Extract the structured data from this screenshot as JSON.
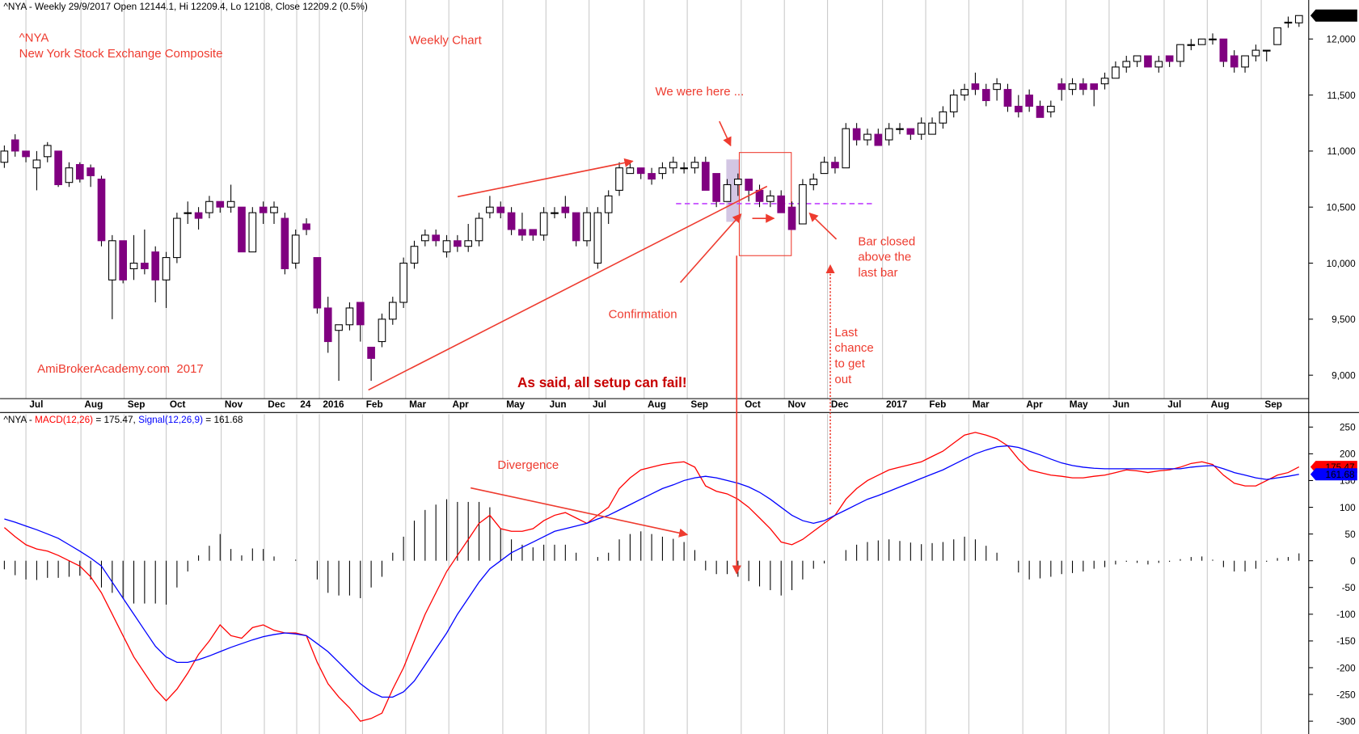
{
  "chart_data": [
    {
      "type": "candlestick",
      "title": "^NYA - Weekly 29/9/2017 Open 12144.1, Hi 12209.4, Lo 12108, Close 12209.2 (0.5%)",
      "last_value_label": "12,209.2",
      "up_color": "#ffffff",
      "down_color": "#800080",
      "grid": true,
      "annotations": {
        "symbol": "^NYA",
        "name": "New York Stock Exchange Composite",
        "period": "Weekly Chart",
        "here": "We were here ...",
        "bar_closed": [
          "Bar closed",
          "above the",
          "last bar"
        ],
        "confirmation": "Confirmation",
        "last_chance": [
          "Last",
          "chance",
          "to get",
          "out"
        ],
        "site": "AmiBrokerAcademy.com  2017",
        "warning": "As said, all setup can fail!"
      },
      "xlim": [
        -0.4,
        120.9
      ],
      "xticks": [
        {
          "value": 2,
          "label": "Jul"
        },
        {
          "value": 7.1,
          "label": "Aug"
        },
        {
          "value": 11.1,
          "label": "Sep"
        },
        {
          "value": 15,
          "label": "Oct"
        },
        {
          "value": 20.1,
          "label": "Nov"
        },
        {
          "value": 24.1,
          "label": "Dec"
        },
        {
          "value": 27.1,
          "label": "24"
        },
        {
          "value": 29.2,
          "label": "2016"
        },
        {
          "value": 33.2,
          "label": "Feb"
        },
        {
          "value": 37.2,
          "label": "Mar"
        },
        {
          "value": 41.2,
          "label": "Apr"
        },
        {
          "value": 46.2,
          "label": "May"
        },
        {
          "value": 50.2,
          "label": "Jun"
        },
        {
          "value": 54.2,
          "label": "Jul"
        },
        {
          "value": 59.3,
          "label": "Aug"
        },
        {
          "value": 63.3,
          "label": "Sep"
        },
        {
          "value": 68.3,
          "label": "Oct"
        },
        {
          "value": 72.3,
          "label": "Nov"
        },
        {
          "value": 76.3,
          "label": "Dec"
        },
        {
          "value": 81.4,
          "label": "2017"
        },
        {
          "value": 85.4,
          "label": "Feb"
        },
        {
          "value": 89.4,
          "label": "Mar"
        },
        {
          "value": 94.4,
          "label": "Apr"
        },
        {
          "value": 98.4,
          "label": "May"
        },
        {
          "value": 102.4,
          "label": "Jun"
        },
        {
          "value": 107.5,
          "label": "Jul"
        },
        {
          "value": 111.5,
          "label": "Aug"
        },
        {
          "value": 116.5,
          "label": "Sep"
        }
      ],
      "ylim": [
        8791,
        12348
      ],
      "yticks": [
        {
          "value": 9000,
          "label": "9,000"
        },
        {
          "value": 9500,
          "label": "9,500"
        },
        {
          "value": 10000,
          "label": "10,000"
        },
        {
          "value": 10500,
          "label": "10,500"
        },
        {
          "value": 11000,
          "label": "11,000"
        },
        {
          "value": 11500,
          "label": "11,500"
        },
        {
          "value": 12000,
          "label": "12,000"
        }
      ],
      "open": [
        10900,
        11100,
        11000,
        10850,
        10950,
        11000,
        10720,
        10880,
        10850,
        10750,
        9850,
        10200,
        9950,
        10000,
        10100,
        9850,
        10050,
        10450,
        10450,
        10450,
        10550,
        10500,
        10500,
        10100,
        10500,
        10450,
        10400,
        10000,
        10350,
        10050,
        9600,
        9400,
        9450,
        9650,
        9250,
        9300,
        9500,
        9650,
        10000,
        10200,
        10250,
        10100,
        10200,
        10150,
        10200,
        10450,
        10500,
        10450,
        10300,
        10300,
        10250,
        10450,
        10500,
        10450,
        10200,
        10000,
        10450,
        10650,
        10800,
        10850,
        10800,
        10800,
        10850,
        10850,
        10850,
        10900,
        10800,
        10550,
        10700,
        10750,
        10650,
        10550,
        10600,
        10500,
        10350,
        10700,
        10800,
        10900,
        10850,
        11200,
        11100,
        11150,
        11100,
        11200,
        11200,
        11150,
        11150,
        11250,
        11350,
        11500,
        11600,
        11550,
        11550,
        11550,
        11400,
        11500,
        11400,
        11350,
        11600,
        11550,
        11600,
        11600,
        11600,
        11650,
        11750,
        11800,
        11850,
        11750,
        11850,
        11800,
        11950,
        11950,
        12000,
        12000,
        11850,
        11750,
        11850,
        11900,
        11950,
        12150,
        12144.1
      ],
      "high": [
        11050,
        11150,
        11000,
        11000,
        11080,
        11000,
        10900,
        10900,
        10880,
        10780,
        10250,
        10200,
        10250,
        10300,
        10150,
        10100,
        10450,
        10550,
        10500,
        10600,
        10550,
        10700,
        10500,
        10500,
        10550,
        10550,
        10450,
        10300,
        10400,
        10050,
        9700,
        9450,
        9650,
        9650,
        9250,
        9550,
        9700,
        10050,
        10200,
        10300,
        10300,
        10250,
        10250,
        10350,
        10450,
        10600,
        10550,
        10500,
        10450,
        10300,
        10500,
        10500,
        10600,
        10450,
        10500,
        10500,
        10650,
        10900,
        10900,
        10850,
        10850,
        10900,
        10950,
        10900,
        10950,
        10950,
        10800,
        10750,
        10800,
        10750,
        10700,
        10650,
        10650,
        10550,
        10750,
        10800,
        10950,
        10950,
        11250,
        11250,
        11200,
        11200,
        11250,
        11250,
        11200,
        11300,
        11300,
        11400,
        11550,
        11600,
        11700,
        11600,
        11650,
        11600,
        11500,
        11550,
        11450,
        11450,
        11650,
        11650,
        11650,
        11600,
        11700,
        11800,
        11850,
        11850,
        11850,
        11850,
        11850,
        11950,
        12000,
        12000,
        12050,
        12000,
        11900,
        11850,
        11950,
        11900,
        12100,
        12200,
        12209.4
      ],
      "low": [
        10850,
        10950,
        10900,
        10650,
        10900,
        10680,
        10680,
        10720,
        10680,
        10150,
        9500,
        9820,
        9850,
        9900,
        9650,
        9600,
        10000,
        10350,
        10300,
        10400,
        10450,
        10450,
        10100,
        10100,
        10350,
        10350,
        9900,
        9950,
        10250,
        9550,
        9200,
        8950,
        9400,
        9300,
        8950,
        9250,
        9450,
        9600,
        9950,
        10150,
        10150,
        10050,
        10100,
        10100,
        10150,
        10400,
        10400,
        10250,
        10200,
        10200,
        10200,
        10400,
        10400,
        10150,
        10150,
        9950,
        10350,
        10600,
        10800,
        10750,
        10700,
        10750,
        10800,
        10800,
        10800,
        10650,
        10500,
        10550,
        10600,
        10550,
        10500,
        10500,
        10450,
        10300,
        10350,
        10650,
        10800,
        10800,
        10850,
        11050,
        11050,
        11050,
        11050,
        11150,
        11100,
        11100,
        11150,
        11200,
        11300,
        11450,
        11500,
        11400,
        11450,
        11350,
        11300,
        11350,
        11300,
        11300,
        11450,
        11500,
        11500,
        11400,
        11550,
        11650,
        11700,
        11750,
        11750,
        11700,
        11750,
        11750,
        11900,
        11950,
        11950,
        11750,
        11700,
        11700,
        11800,
        11800,
        11950,
        12100,
        12108
      ],
      "close": [
        11000,
        11000,
        10950,
        10920,
        11050,
        10700,
        10850,
        10750,
        10780,
        10200,
        10200,
        9850,
        10000,
        9950,
        9850,
        10050,
        10400,
        10450,
        10400,
        10550,
        10500,
        10550,
        10100,
        10450,
        10450,
        10500,
        9950,
        10250,
        10300,
        9600,
        9300,
        9450,
        9600,
        9450,
        9150,
        9500,
        9650,
        10000,
        10150,
        10250,
        10200,
        10200,
        10150,
        10200,
        10400,
        10500,
        10450,
        10300,
        10250,
        10250,
        10450,
        10450,
        10450,
        10200,
        10450,
        10450,
        10600,
        10850,
        10850,
        10800,
        10750,
        10850,
        10900,
        10850,
        10900,
        10650,
        10550,
        10700,
        10750,
        10650,
        10550,
        10600,
        10450,
        10300,
        10700,
        10750,
        10900,
        10850,
        11200,
        11100,
        11150,
        11050,
        11200,
        11200,
        11150,
        11250,
        11250,
        11350,
        11500,
        11550,
        11550,
        11450,
        11600,
        11400,
        11350,
        11400,
        11300,
        11400,
        11550,
        11600,
        11550,
        11550,
        11650,
        11750,
        11800,
        11850,
        11750,
        11800,
        11800,
        11950,
        11950,
        12000,
        12000,
        11800,
        11750,
        11850,
        11900,
        11900,
        12100,
        12150,
        12209.2
      ]
    },
    {
      "type": "macd",
      "header_prefix": "^NYA -",
      "annotations": {
        "divergence": "Divergence"
      },
      "ylim": [
        -324,
        274
      ],
      "yticks": [
        250,
        200,
        150,
        100,
        50,
        0,
        -50,
        -100,
        -150,
        -200,
        -250,
        -300
      ],
      "series": [
        {
          "name": "MACD(12,26)",
          "header_value": "= 175.47,",
          "last_value_label": "175.47",
          "color": "#ff0000",
          "values": [
            62,
            45,
            30,
            22,
            18,
            10,
            0,
            -10,
            -30,
            -60,
            -100,
            -140,
            -180,
            -210,
            -240,
            -262,
            -240,
            -210,
            -175,
            -150,
            -120,
            -140,
            -145,
            -125,
            -120,
            -130,
            -135,
            -135,
            -140,
            -190,
            -230,
            -255,
            -275,
            -300,
            -295,
            -285,
            -240,
            -200,
            -150,
            -100,
            -60,
            -20,
            10,
            40,
            70,
            85,
            60,
            55,
            55,
            60,
            75,
            85,
            90,
            80,
            70,
            85,
            100,
            135,
            155,
            170,
            175,
            180,
            183,
            185,
            175,
            140,
            130,
            125,
            115,
            100,
            80,
            60,
            35,
            30,
            40,
            55,
            70,
            85,
            115,
            135,
            150,
            160,
            170,
            175,
            180,
            185,
            195,
            205,
            220,
            235,
            240,
            235,
            228,
            215,
            190,
            170,
            165,
            160,
            158,
            155,
            155,
            158,
            160,
            165,
            170,
            168,
            165,
            168,
            170,
            175,
            182,
            185,
            180,
            160,
            145,
            140,
            140,
            150,
            160,
            165,
            175.47
          ]
        },
        {
          "name": "Signal(12,26,9)",
          "header_value": "= 161.68",
          "last_value_label": "161.68",
          "color": "#0000ff",
          "values": [
            78,
            72,
            65,
            58,
            50,
            42,
            30,
            18,
            5,
            -10,
            -40,
            -70,
            -100,
            -130,
            -160,
            -180,
            -190,
            -190,
            -185,
            -178,
            -170,
            -162,
            -155,
            -148,
            -142,
            -138,
            -135,
            -137,
            -140,
            -155,
            -170,
            -190,
            -210,
            -230,
            -245,
            -255,
            -255,
            -245,
            -225,
            -195,
            -165,
            -135,
            -100,
            -70,
            -40,
            -15,
            0,
            15,
            25,
            35,
            45,
            55,
            60,
            65,
            70,
            78,
            85,
            95,
            105,
            115,
            125,
            135,
            142,
            150,
            155,
            158,
            155,
            150,
            145,
            138,
            128,
            115,
            100,
            85,
            75,
            70,
            75,
            85,
            95,
            105,
            115,
            122,
            130,
            138,
            146,
            154,
            162,
            170,
            180,
            190,
            200,
            207,
            213,
            215,
            212,
            205,
            198,
            190,
            183,
            178,
            175,
            173,
            172,
            172,
            172,
            172,
            172,
            172,
            172,
            172,
            175,
            177,
            178,
            172,
            165,
            160,
            155,
            152,
            155,
            158,
            161.68
          ]
        }
      ],
      "histogram_color": "#000000",
      "histogram": [
        -16,
        -27,
        -35,
        -36,
        -32,
        -32,
        -30,
        -28,
        -35,
        -50,
        -60,
        -70,
        -80,
        -80,
        -80,
        -82,
        -50,
        -20,
        10,
        28,
        50,
        22,
        10,
        23,
        22,
        8,
        0,
        2,
        0,
        -35,
        -60,
        -65,
        -65,
        -70,
        -50,
        -30,
        15,
        45,
        75,
        95,
        105,
        115,
        110,
        110,
        110,
        100,
        60,
        40,
        30,
        25,
        30,
        30,
        30,
        15,
        0,
        7,
        15,
        40,
        50,
        55,
        50,
        45,
        41,
        35,
        20,
        -18,
        -25,
        -25,
        -30,
        -38,
        -48,
        -55,
        -65,
        -55,
        -35,
        -15,
        -5,
        0,
        20,
        30,
        35,
        38,
        40,
        37,
        34,
        31,
        33,
        35,
        40,
        45,
        40,
        28,
        15,
        0,
        -22,
        -35,
        -33,
        -30,
        -25,
        -23,
        -20,
        -15,
        -12,
        -7,
        -2,
        -4,
        -7,
        -4,
        -2,
        3,
        7,
        8,
        2,
        -12,
        -20,
        -20,
        -15,
        -2,
        5,
        7,
        13.79
      ]
    }
  ]
}
